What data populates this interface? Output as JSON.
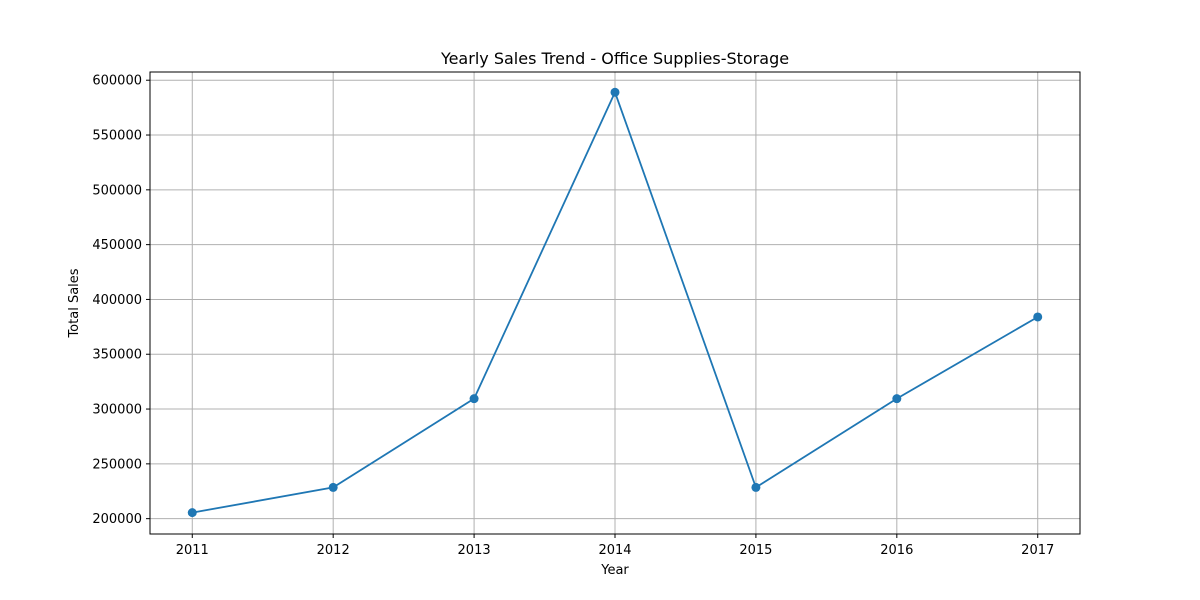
{
  "chart_data": {
    "type": "line",
    "title": "Yearly Sales Trend - Office Supplies-Storage",
    "xlabel": "Year",
    "ylabel": "Total Sales",
    "x": [
      2011,
      2012,
      2013,
      2014,
      2015,
      2016,
      2017
    ],
    "series": [
      {
        "values": [
          205500,
          228500,
          309500,
          589000,
          228500,
          309500,
          384000
        ]
      }
    ],
    "xlim": [
      2010.7,
      2017.3
    ],
    "ylim": [
      186000,
      607500
    ],
    "yticks": [
      200000,
      250000,
      300000,
      350000,
      400000,
      450000,
      500000,
      550000,
      600000
    ],
    "xticks": [
      2011,
      2012,
      2013,
      2014,
      2015,
      2016,
      2017
    ],
    "grid": true,
    "line_color": "#1f77b4",
    "marker": "circle"
  }
}
